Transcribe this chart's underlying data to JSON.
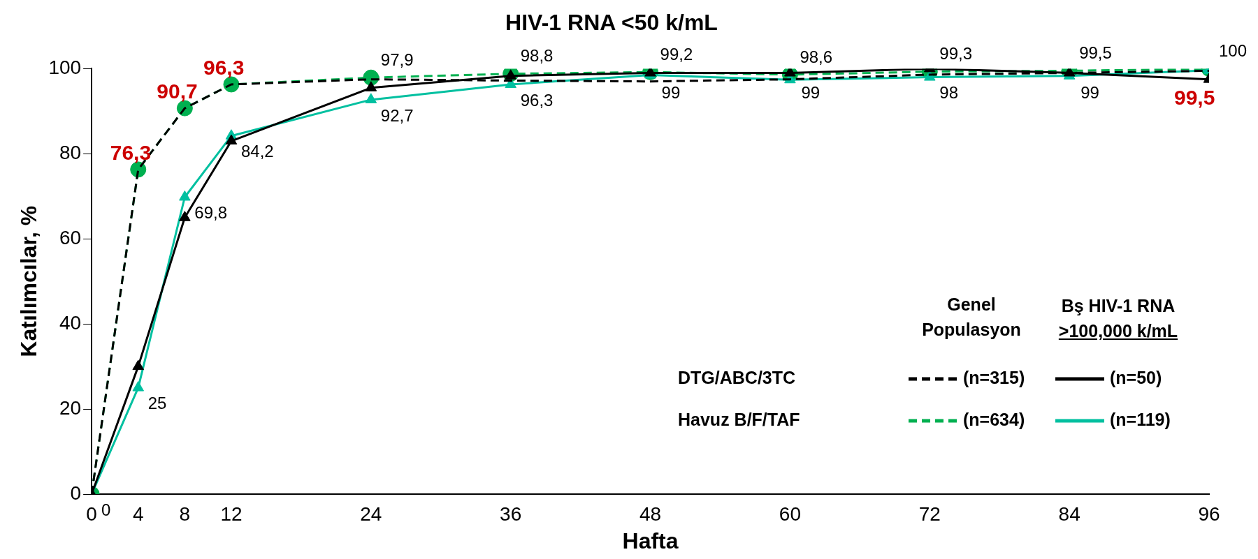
{
  "chart_data": {
    "type": "line",
    "title": "HIV-1 RNA <50 k/mL",
    "xlabel": "Hafta",
    "ylabel": "Katılımcılar, %",
    "x": [
      0,
      4,
      8,
      12,
      24,
      36,
      48,
      60,
      72,
      84,
      96
    ],
    "xlim": [
      0,
      96
    ],
    "xticks": [
      0,
      4,
      8,
      12,
      24,
      36,
      48,
      60,
      72,
      84,
      96
    ],
    "ylim": [
      0,
      100
    ],
    "yticks": [
      0,
      20,
      40,
      60,
      80,
      100
    ],
    "grid": false,
    "legend": "bottom right",
    "annotations": [
      "DTG/ABC/3TC",
      "Havuz B/F/TAF",
      "Genel\nPopulasyon",
      "Bş HIV-1 RNA\n>100,000 k/mL"
    ],
    "series": [
      {
        "name": "(n=315)",
        "color": "#000000",
        "line_style": "dashed",
        "values": [
          0,
          76.3,
          90.7,
          96.3,
          97.5,
          97.2,
          97,
          97.5,
          98.6,
          99,
          99.5
        ],
        "value_labels": [
          null,
          "76,3",
          "90,7",
          "96,3",
          null,
          null,
          null,
          null,
          null,
          null,
          "99,5"
        ]
      },
      {
        "name": "(n=634)",
        "color": "#00b050",
        "line_style": "dashed",
        "marker": "circle",
        "values": [
          0,
          76.3,
          90.7,
          96.3,
          97.9,
          98.8,
          99.2,
          98.6,
          99.3,
          99.5,
          100
        ],
        "value_labels": [
          null,
          null,
          null,
          null,
          "97,9",
          "98,8",
          "99,2",
          "98,6",
          "99,3",
          "99,5",
          "100"
        ]
      },
      {
        "name": "(n=50)",
        "color": "#000000",
        "line_style": "solid",
        "marker": "triangle",
        "values": [
          0,
          30,
          65,
          83,
          95.5,
          98.3,
          99,
          99,
          100,
          99,
          97.5
        ],
        "value_labels": [
          null,
          null,
          null,
          null,
          null,
          null,
          "99",
          "99",
          null,
          "99",
          null
        ]
      },
      {
        "name": "(n=119)",
        "color": "#00c0a0",
        "line_style": "solid",
        "marker": "triangle",
        "values": [
          0,
          25,
          69.8,
          84.2,
          92.7,
          96.3,
          98.5,
          97.4,
          98,
          98.3,
          99.6
        ],
        "value_labels": [
          "0",
          "25",
          "69,8",
          "84,2",
          "92,7",
          "96,3",
          null,
          null,
          "98",
          null,
          null
        ]
      }
    ]
  }
}
